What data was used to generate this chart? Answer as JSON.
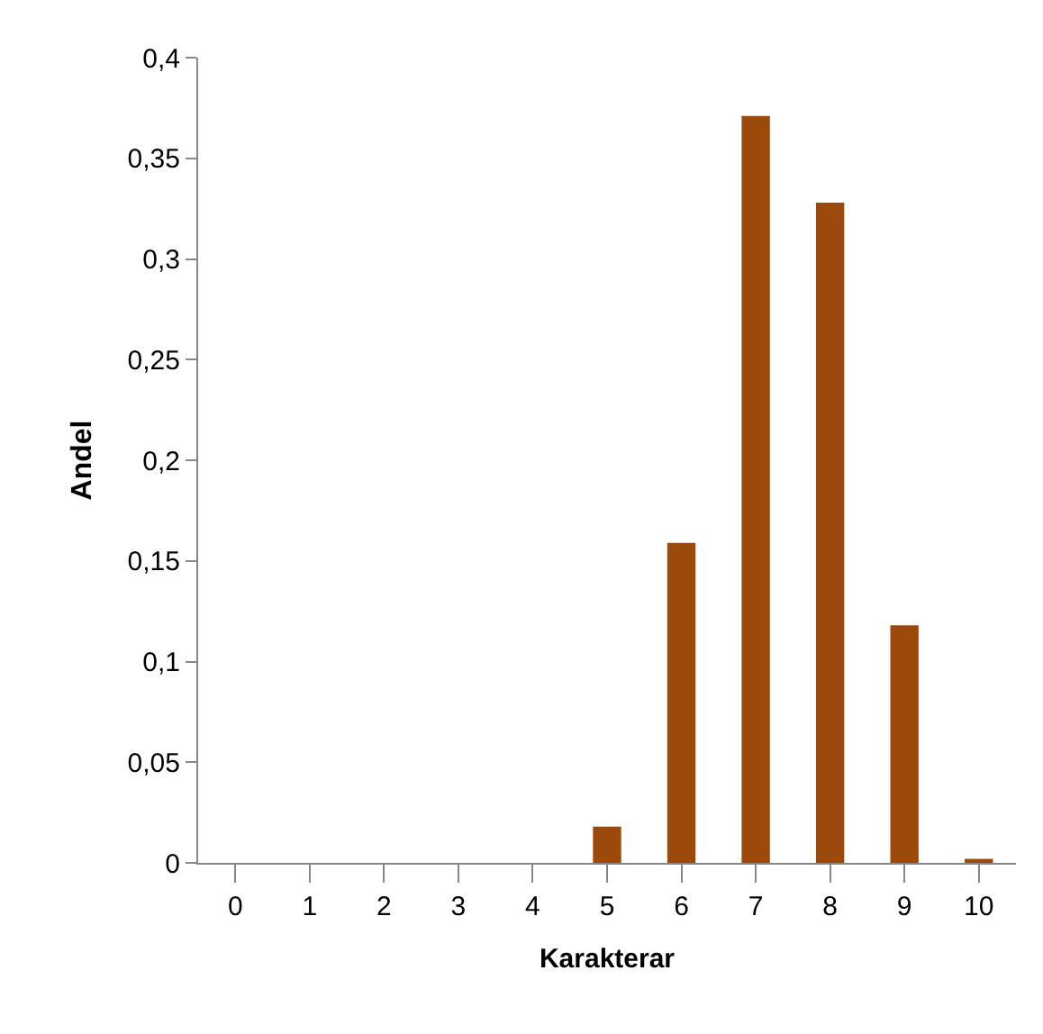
{
  "chart_data": {
    "type": "bar",
    "xlabel": "Karakterar",
    "ylabel": "Andel",
    "categories": [
      "0",
      "1",
      "2",
      "3",
      "4",
      "5",
      "6",
      "7",
      "8",
      "9",
      "10"
    ],
    "values": [
      0,
      0,
      0,
      0,
      0,
      0.018,
      0.159,
      0.371,
      0.328,
      0.118,
      0.002
    ],
    "color": "#9c4a0c",
    "ylim": [
      0,
      0.4
    ],
    "yticks": [
      {
        "value": 0,
        "label": "0"
      },
      {
        "value": 0.05,
        "label": "0,05"
      },
      {
        "value": 0.1,
        "label": "0,1"
      },
      {
        "value": 0.15,
        "label": "0,15"
      },
      {
        "value": 0.2,
        "label": "0,2"
      },
      {
        "value": 0.25,
        "label": "0,25"
      },
      {
        "value": 0.3,
        "label": "0,3"
      },
      {
        "value": 0.35,
        "label": "0,35"
      },
      {
        "value": 0.4,
        "label": "0,4"
      }
    ],
    "legend": false
  }
}
